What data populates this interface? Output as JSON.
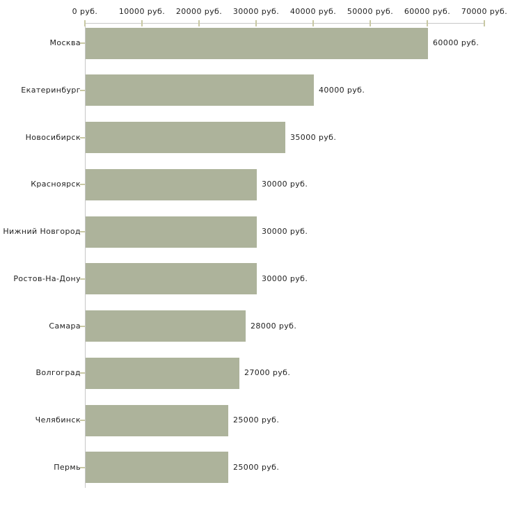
{
  "chart_data": {
    "type": "bar",
    "orientation": "horizontal",
    "categories": [
      "Москва",
      "Екатеринбург",
      "Новосибирск",
      "Красноярск",
      "Нижний Новгород",
      "Ростов-На-Дону",
      "Самара",
      "Волгоград",
      "Челябинск",
      "Пермь"
    ],
    "values": [
      60000,
      40000,
      35000,
      30000,
      30000,
      30000,
      28000,
      27000,
      25000,
      25000
    ],
    "value_labels": [
      "60000 руб.",
      "40000 руб.",
      "35000 руб.",
      "30000 руб.",
      "30000 руб.",
      "30000 руб.",
      "28000 руб.",
      "27000 руб.",
      "25000 руб.",
      "25000 руб."
    ],
    "x_axis": {
      "position": "top",
      "tick_values": [
        0,
        10000,
        20000,
        30000,
        40000,
        50000,
        60000,
        70000
      ],
      "tick_labels": [
        "0 руб.",
        "10000 руб.",
        "20000 руб.",
        "30000 руб.",
        "40000 руб.",
        "50000 руб.",
        "60000 руб.",
        "70000 руб."
      ],
      "xlim": [
        0,
        70000
      ],
      "unit": "руб."
    },
    "ylabel": "",
    "xlabel": "",
    "title": "",
    "grid": false,
    "legend": false,
    "colors": {
      "bar": "#adb39b",
      "axis_line": "#c7c7c7",
      "tick_mark": "#c8c8a3",
      "text": "#1e1e1e",
      "background": "#ffffff"
    }
  }
}
